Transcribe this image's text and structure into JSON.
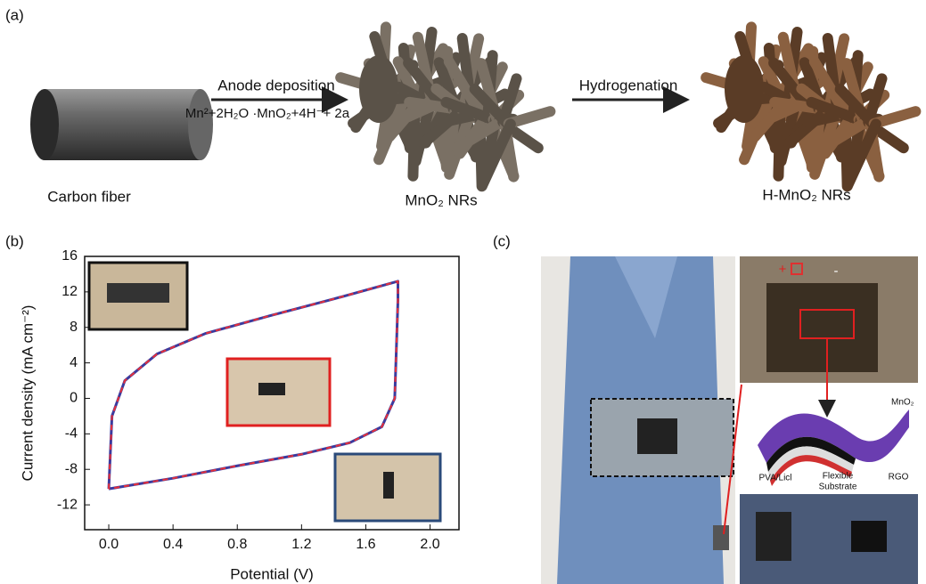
{
  "panel_a": {
    "label": "(a)",
    "arrow1_label": "Anode deposition",
    "equation": "Mn²+2H₂O ·MnO₂+4H⁻+ 2a",
    "arrow2_label": "Hydrogenation",
    "captions": [
      "Carbon fiber",
      "MnO₂ NRs",
      "H-MnO₂ NRs"
    ]
  },
  "panel_b": {
    "label": "(b)"
  },
  "chart_data": {
    "type": "line",
    "x_label": "Potential (V)",
    "y_label": "Current density (mA cm⁻²)",
    "x": [
      0,
      0.02,
      0.1,
      0.3,
      0.6,
      1.0,
      1.4,
      1.7,
      1.8,
      1.8,
      1.78,
      1.7,
      1.5,
      1.2,
      0.8,
      0.4,
      0.1,
      0
    ],
    "series": [
      {
        "color": "#3b3b9e",
        "values": [
          -10.2,
          -2,
          2,
          5,
          7.3,
          9.3,
          11.2,
          12.7,
          13.2,
          11,
          0,
          -3.2,
          -5,
          -6.3,
          -7.6,
          -9,
          -9.9,
          -10.2
        ]
      },
      {
        "color": "#e8303a",
        "dashed": true,
        "values": [
          -10.2,
          -2,
          2,
          5,
          7.3,
          9.3,
          11.2,
          12.7,
          13.2,
          11,
          0,
          -3.2,
          -5,
          -6.3,
          -7.6,
          -9,
          -9.9,
          -10.2
        ]
      }
    ],
    "xlim": [
      -0.15,
      2.18
    ],
    "ylim": [
      -14.8,
      16
    ],
    "xticks": [
      {
        "value": 0,
        "label": "0.0"
      },
      0.4,
      0.8,
      1.2,
      1.6,
      {
        "value": 2,
        "label": "2.0"
      }
    ],
    "yticks": [
      -12,
      -8,
      -4,
      0,
      4,
      8,
      12,
      16
    ]
  },
  "panel_c": {
    "label": "(c)",
    "plus": "+",
    "minus": "-",
    "layer_labels": {
      "top": "MnO₂",
      "left": "PVA/Licl",
      "middle": [
        "Flexible",
        "Substrate"
      ],
      "right": "RGO"
    }
  }
}
